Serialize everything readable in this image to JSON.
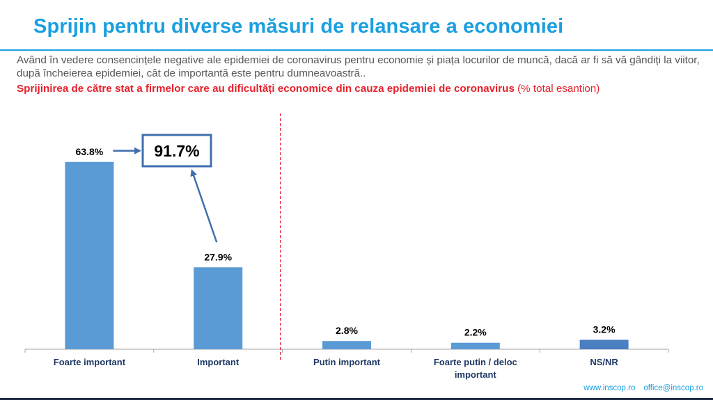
{
  "header": {
    "title": "Sprijin pentru diverse măsuri de relansare a economiei",
    "question": "Având în vedere consencințele negative ale epidemiei de coronavirus pentru economie și piața locurilor de muncă, dacă ar fi să vă gândiți la viitor, după încheierea epidemiei, cât de importantă este pentru dumneavoastră..",
    "subtitle_bold": "Sprijinirea de către stat a firmelor care au dificultăți economice din cauza epidemiei de coronavirus",
    "subtitle_note": " (% total esantion)"
  },
  "chart_data": {
    "type": "bar",
    "categories": [
      "Foarte important",
      "Important",
      "Putin important",
      "Foarte putin / deloc important",
      "NS/NR"
    ],
    "values": [
      63.8,
      27.9,
      2.8,
      2.2,
      3.2
    ],
    "value_labels": [
      "63.8%",
      "27.9%",
      "2.8%",
      "2.2%",
      "3.2%"
    ],
    "ylim": [
      0,
      70
    ],
    "grid": false,
    "separator_after_category": 2,
    "annotation": {
      "text": "91.7%",
      "links_categories": [
        0,
        1
      ]
    },
    "colors": {
      "bar": "#5b9bd5",
      "bar_last": "#4a7fc1",
      "annotation": "#3f6faf",
      "separator": "#e8202a",
      "axis": "#a6a6a6"
    }
  },
  "footer": {
    "website": "www.inscop.ro",
    "email": "office@inscop.ro"
  }
}
